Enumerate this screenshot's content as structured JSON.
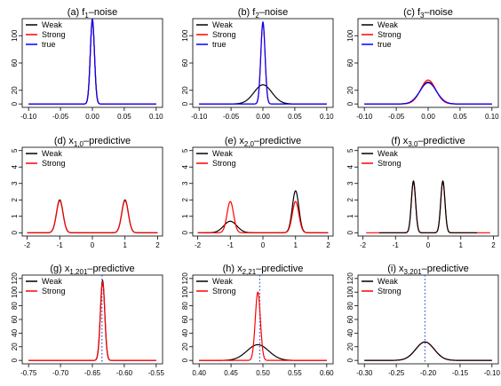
{
  "chart_data": [
    {
      "type": "line",
      "title": "(a) f₁–noise",
      "title_parts": {
        "pre": "(a) f",
        "sub": "1",
        "post": "–noise"
      },
      "xlim": [
        -0.11,
        0.11
      ],
      "ylim": [
        -5,
        125
      ],
      "xticks": [
        "-0.10",
        "-0.05",
        "0.00",
        "0.05",
        "0.10"
      ],
      "yticks": [
        "0",
        "20",
        "60",
        "100"
      ],
      "legend": [
        "Weak",
        "Strong",
        "true"
      ],
      "legend_position": "top-left",
      "series": [
        {
          "name": "Weak",
          "color": "#000000",
          "shape": "gaussian",
          "peak_x": 0.0,
          "peak_y": 122,
          "sd": 0.0033,
          "xrange": [
            -0.1,
            0.1
          ]
        },
        {
          "name": "Strong",
          "color": "#ff0000",
          "shape": "gaussian",
          "peak_x": 0.0,
          "peak_y": 122,
          "sd": 0.0033,
          "xrange": [
            -0.1,
            0.1
          ]
        },
        {
          "name": "true",
          "color": "#0000ff",
          "shape": "gaussian",
          "peak_x": 0.0,
          "peak_y": 125,
          "sd": 0.0032,
          "xrange": [
            -0.1,
            0.1
          ]
        }
      ]
    },
    {
      "type": "line",
      "title": "(b) f₂–noise",
      "title_parts": {
        "pre": "(b) f",
        "sub": "2",
        "post": "–noise"
      },
      "xlim": [
        -0.11,
        0.11
      ],
      "ylim": [
        -5,
        125
      ],
      "xticks": [
        "-0.10",
        "-0.05",
        "0.00",
        "0.05",
        "0.10"
      ],
      "yticks": [
        "0",
        "20",
        "60",
        "100"
      ],
      "legend": [
        "Weak",
        "Strong",
        "true"
      ],
      "legend_position": "top-left",
      "series": [
        {
          "name": "Weak",
          "color": "#000000",
          "shape": "gaussian",
          "peak_x": 0.0,
          "peak_y": 28,
          "sd": 0.014,
          "xrange": [
            -0.1,
            0.1
          ]
        },
        {
          "name": "Strong",
          "color": "#ff0000",
          "shape": "gaussian",
          "peak_x": 0.0,
          "peak_y": 118,
          "sd": 0.0034,
          "xrange": [
            -0.1,
            0.1
          ]
        },
        {
          "name": "true",
          "color": "#0000ff",
          "shape": "gaussian",
          "peak_x": 0.0,
          "peak_y": 120,
          "sd": 0.0033,
          "xrange": [
            -0.1,
            0.1
          ]
        }
      ]
    },
    {
      "type": "line",
      "title": "(c) f₃–noise",
      "title_parts": {
        "pre": "(c) f",
        "sub": "3",
        "post": "–noise"
      },
      "xlim": [
        -0.11,
        0.11
      ],
      "ylim": [
        -5,
        125
      ],
      "xticks": [
        "-0.10",
        "-0.05",
        "0.00",
        "0.05",
        "0.10"
      ],
      "yticks": [
        "0",
        "20",
        "60",
        "100"
      ],
      "legend": [
        "Weak",
        "Strong",
        "true"
      ],
      "legend_position": "top-left",
      "series": [
        {
          "name": "Weak",
          "color": "#000000",
          "shape": "gaussian",
          "peak_x": 0.0,
          "peak_y": 32,
          "sd": 0.0125,
          "xrange": [
            -0.1,
            0.1
          ]
        },
        {
          "name": "Strong",
          "color": "#ff0000",
          "shape": "gaussian",
          "peak_x": 0.0,
          "peak_y": 35,
          "sd": 0.0118,
          "xrange": [
            -0.1,
            0.1
          ]
        },
        {
          "name": "true",
          "color": "#0000ff",
          "shape": "gaussian",
          "peak_x": 0.0,
          "peak_y": 31,
          "sd": 0.013,
          "xrange": [
            -0.1,
            0.1
          ]
        }
      ]
    },
    {
      "type": "line",
      "title": "(d) x₁,₀–predictive",
      "title_parts": {
        "pre": "(d) x",
        "sub": "1,0",
        "post": "–predictive"
      },
      "xlim": [
        -2.15,
        2.15
      ],
      "ylim": [
        -0.2,
        5.2
      ],
      "xticks": [
        "-2",
        "-1",
        "0",
        "1",
        "2"
      ],
      "yticks": [
        "0",
        "1",
        "2",
        "3",
        "4",
        "5"
      ],
      "legend": [
        "Weak",
        "Strong"
      ],
      "legend_position": "top-left",
      "series": [
        {
          "name": "Weak",
          "color": "#000000",
          "shape": "bimodal",
          "modes": [
            {
              "x": -1.0,
              "y": 2.0,
              "sd": 0.1
            },
            {
              "x": 1.0,
              "y": 2.0,
              "sd": 0.1
            }
          ],
          "xrange": [
            -2.0,
            2.0
          ]
        },
        {
          "name": "Strong",
          "color": "#ff0000",
          "shape": "bimodal",
          "modes": [
            {
              "x": -1.0,
              "y": 1.95,
              "sd": 0.1
            },
            {
              "x": 1.0,
              "y": 1.95,
              "sd": 0.1
            }
          ],
          "xrange": [
            -2.0,
            2.0
          ]
        }
      ]
    },
    {
      "type": "line",
      "title": "(e) x₂,₀–predictive",
      "title_parts": {
        "pre": "(e) x",
        "sub": "2,0",
        "post": "–predictive"
      },
      "xlim": [
        -2.15,
        2.15
      ],
      "ylim": [
        -0.2,
        5.2
      ],
      "xticks": [
        "-2",
        "-1",
        "0",
        "1",
        "2"
      ],
      "yticks": [
        "0",
        "1",
        "2",
        "3",
        "4",
        "5"
      ],
      "legend": [
        "Weak",
        "Strong"
      ],
      "legend_position": "top-left",
      "series": [
        {
          "name": "Weak",
          "color": "#000000",
          "shape": "bimodal",
          "modes": [
            {
              "x": -1.0,
              "y": 0.7,
              "sd": 0.2
            },
            {
              "x": 1.0,
              "y": 2.55,
              "sd": 0.1
            }
          ],
          "xrange": [
            -2.0,
            2.0
          ]
        },
        {
          "name": "Strong",
          "color": "#ff0000",
          "shape": "bimodal",
          "modes": [
            {
              "x": -1.0,
              "y": 1.9,
              "sd": 0.1
            },
            {
              "x": 1.0,
              "y": 1.9,
              "sd": 0.1
            }
          ],
          "xrange": [
            -2.0,
            2.0
          ]
        }
      ]
    },
    {
      "type": "line",
      "title": "(f) x₃,₀–predictive",
      "title_parts": {
        "pre": "(f) x",
        "sub": "3,0",
        "post": "–predictive"
      },
      "xlim": [
        -2.15,
        2.15
      ],
      "ylim": [
        -0.2,
        5.2
      ],
      "xticks": [
        "-2",
        "-1",
        "0",
        "1",
        "2"
      ],
      "yticks": [
        "0",
        "1",
        "2",
        "3",
        "4",
        "5"
      ],
      "legend": [
        "Weak",
        "Strong"
      ],
      "legend_position": "top-left",
      "series": [
        {
          "name": "Strong",
          "color": "#ff0000",
          "shape": "bimodal",
          "modes": [
            {
              "x": -0.45,
              "y": 3.1,
              "sd": 0.065
            },
            {
              "x": 0.45,
              "y": 3.1,
              "sd": 0.065
            }
          ],
          "xrange": [
            -1.9,
            1.9
          ]
        },
        {
          "name": "Weak",
          "color": "#000000",
          "shape": "bimodal",
          "modes": [
            {
              "x": -0.45,
              "y": 3.15,
              "sd": 0.065
            },
            {
              "x": 0.45,
              "y": 3.15,
              "sd": 0.065
            }
          ],
          "xrange": [
            -1.5,
            1.5
          ]
        }
      ]
    },
    {
      "type": "line",
      "title": "(g) x₁,₂₀₁–predictive",
      "title_parts": {
        "pre": "(g) x",
        "sub": "1,201",
        "post": "–predictive"
      },
      "xlim": [
        -0.76,
        -0.54
      ],
      "ylim": [
        -5,
        125
      ],
      "xticks": [
        "-0.75",
        "-0.70",
        "-0.65",
        "-0.60",
        "-0.55"
      ],
      "yticks": [
        "0",
        "20",
        "40",
        "60",
        "80",
        "100",
        "120"
      ],
      "legend": [
        "Weak",
        "Strong"
      ],
      "legend_position": "top-left",
      "true_value_x": -0.635,
      "series": [
        {
          "name": "Weak",
          "color": "#000000",
          "shape": "gaussian",
          "peak_x": -0.634,
          "peak_y": 117,
          "sd": 0.0034,
          "xrange": [
            -0.75,
            -0.55
          ]
        },
        {
          "name": "Strong",
          "color": "#ff0000",
          "shape": "gaussian",
          "peak_x": -0.634,
          "peak_y": 115,
          "sd": 0.0035,
          "xrange": [
            -0.75,
            -0.55
          ]
        }
      ]
    },
    {
      "type": "line",
      "title": "(h) x₂,₂₁–predictive",
      "title_parts": {
        "pre": "(h) x",
        "sub": "2,21",
        "post": "–predictive"
      },
      "xlim": [
        0.39,
        0.61
      ],
      "ylim": [
        -5,
        125
      ],
      "xticks": [
        "0.40",
        "0.45",
        "0.50",
        "0.55",
        "0.60"
      ],
      "yticks": [
        "0",
        "20",
        "40",
        "60",
        "80",
        "100",
        "120"
      ],
      "legend": [
        "Weak",
        "Strong"
      ],
      "legend_position": "top-left",
      "true_value_x": 0.495,
      "series": [
        {
          "name": "Weak",
          "color": "#000000",
          "shape": "gaussian",
          "peak_x": 0.492,
          "peak_y": 23,
          "sd": 0.017,
          "xrange": [
            0.4,
            0.6
          ]
        },
        {
          "name": "Strong",
          "color": "#ff0000",
          "shape": "gaussian",
          "peak_x": 0.492,
          "peak_y": 100,
          "sd": 0.004,
          "xrange": [
            0.4,
            0.6
          ]
        }
      ]
    },
    {
      "type": "line",
      "title": "(i) x₃,₂₀₁–predictive",
      "title_parts": {
        "pre": "(i) x",
        "sub": "3,201",
        "post": "–predictive"
      },
      "xlim": [
        -0.31,
        -0.09
      ],
      "ylim": [
        -5,
        125
      ],
      "xticks": [
        "-0.30",
        "-0.25",
        "-0.20",
        "-0.15",
        "-0.10"
      ],
      "yticks": [
        "0",
        "20",
        "40",
        "60",
        "80",
        "100",
        "120"
      ],
      "legend": [
        "Weak",
        "Strong"
      ],
      "legend_position": "top-left",
      "true_value_x": -0.205,
      "series": [
        {
          "name": "Strong",
          "color": "#ff0000",
          "shape": "gaussian",
          "peak_x": -0.205,
          "peak_y": 27,
          "sd": 0.0145,
          "xrange": [
            -0.3,
            -0.1
          ]
        },
        {
          "name": "Weak",
          "color": "#000000",
          "shape": "gaussian",
          "peak_x": -0.205,
          "peak_y": 27,
          "sd": 0.0145,
          "xrange": [
            -0.3,
            -0.1
          ]
        }
      ]
    }
  ]
}
